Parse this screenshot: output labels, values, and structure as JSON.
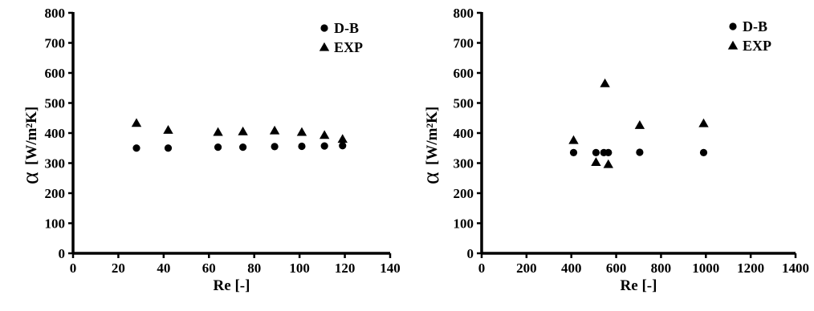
{
  "chart_data": [
    {
      "type": "scatter",
      "title": "",
      "xlabel": "Re [-]",
      "ylabel_symbol": "α",
      "ylabel_units": "[W/m²K]",
      "xlim": [
        0,
        140
      ],
      "ylim": [
        0,
        800
      ],
      "xticks": [
        0,
        20,
        40,
        60,
        80,
        100,
        120,
        140
      ],
      "yticks": [
        0,
        100,
        200,
        300,
        400,
        500,
        600,
        700,
        800
      ],
      "grid": false,
      "legend_position": "top-right",
      "series": [
        {
          "name": "D-B",
          "marker": "circle",
          "x": [
            28,
            42,
            64,
            75,
            89,
            101,
            111,
            119
          ],
          "y": [
            350,
            350,
            353,
            353,
            355,
            356,
            357,
            358
          ]
        },
        {
          "name": "EXP",
          "marker": "triangle",
          "x": [
            28,
            42,
            64,
            75,
            89,
            101,
            111,
            119
          ],
          "y": [
            433,
            410,
            403,
            405,
            408,
            403,
            393,
            380
          ]
        }
      ]
    },
    {
      "type": "scatter",
      "title": "",
      "xlabel": "Re [-]",
      "ylabel_symbol": "α",
      "ylabel_units": "[W/m²K]",
      "xlim": [
        0,
        1400
      ],
      "ylim": [
        0,
        800
      ],
      "xticks": [
        0,
        200,
        400,
        600,
        800,
        1000,
        1200,
        1400
      ],
      "yticks": [
        0,
        100,
        200,
        300,
        400,
        500,
        600,
        700,
        800
      ],
      "grid": false,
      "legend_position": "top-right",
      "series": [
        {
          "name": "D-B",
          "marker": "circle",
          "x": [
            410,
            510,
            545,
            565,
            705,
            990
          ],
          "y": [
            335,
            335,
            335,
            335,
            336,
            335
          ]
        },
        {
          "name": "EXP",
          "marker": "triangle",
          "x": [
            410,
            510,
            550,
            565,
            705,
            990
          ],
          "y": [
            376,
            303,
            565,
            296,
            426,
            432
          ]
        }
      ]
    }
  ]
}
